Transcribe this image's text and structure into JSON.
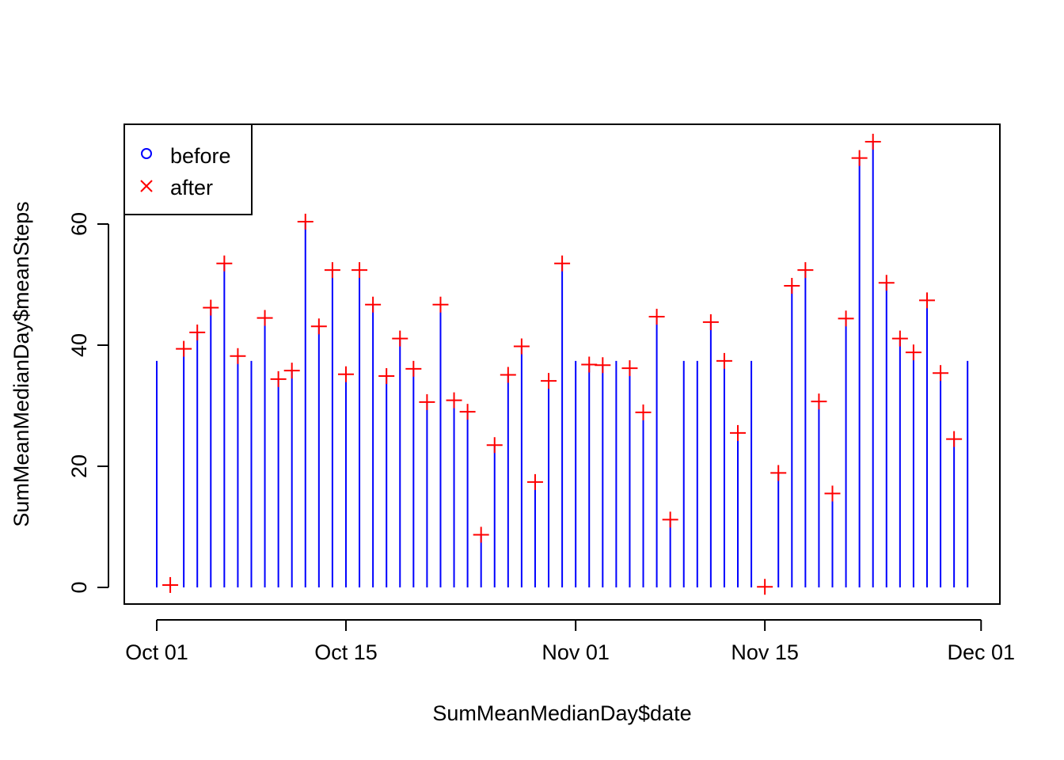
{
  "chart_data": {
    "type": "line",
    "title": "",
    "xlabel": "SumMeanMedianDay$date",
    "ylabel": "SumMeanMedianDay$meanSteps",
    "x_ticks": [
      "Oct 01",
      "Oct 15",
      "Nov 01",
      "Nov 15",
      "Dec 01"
    ],
    "y_ticks": [
      "0",
      "20",
      "40",
      "60"
    ],
    "x_tick_dates": [
      "2012-10-01",
      "2012-10-15",
      "2012-11-01",
      "2012-11-15",
      "2012-12-01"
    ],
    "xlim": [
      "2012-09-28",
      "2012-12-02"
    ],
    "ylim": [
      0,
      75
    ],
    "legend": {
      "position": "top-left",
      "entries": [
        {
          "label": "before",
          "symbol": "circle",
          "color": "#0000ff"
        },
        {
          "label": "after",
          "symbol": "x",
          "color": "#ff0000"
        }
      ]
    },
    "series": [
      {
        "name": "before",
        "style": "vertical-lines",
        "color": "#0000ff",
        "x": [
          "2012-10-01",
          "2012-10-02",
          "2012-10-03",
          "2012-10-04",
          "2012-10-05",
          "2012-10-06",
          "2012-10-07",
          "2012-10-08",
          "2012-10-09",
          "2012-10-10",
          "2012-10-11",
          "2012-10-12",
          "2012-10-13",
          "2012-10-14",
          "2012-10-15",
          "2012-10-16",
          "2012-10-17",
          "2012-10-18",
          "2012-10-19",
          "2012-10-20",
          "2012-10-21",
          "2012-10-22",
          "2012-10-23",
          "2012-10-24",
          "2012-10-25",
          "2012-10-26",
          "2012-10-27",
          "2012-10-28",
          "2012-10-29",
          "2012-10-30",
          "2012-10-31",
          "2012-11-01",
          "2012-11-02",
          "2012-11-03",
          "2012-11-04",
          "2012-11-05",
          "2012-11-06",
          "2012-11-07",
          "2012-11-08",
          "2012-11-09",
          "2012-11-10",
          "2012-11-11",
          "2012-11-12",
          "2012-11-13",
          "2012-11-14",
          "2012-11-15",
          "2012-11-16",
          "2012-11-17",
          "2012-11-18",
          "2012-11-19",
          "2012-11-20",
          "2012-11-21",
          "2012-11-22",
          "2012-11-23",
          "2012-11-24",
          "2012-11-25",
          "2012-11-26",
          "2012-11-27",
          "2012-11-28",
          "2012-11-29",
          "2012-11-30"
        ],
        "values": [
          37.4,
          0.4,
          39.4,
          42.1,
          46.2,
          53.5,
          38.2,
          37.4,
          44.5,
          34.4,
          35.8,
          60.4,
          43.1,
          52.4,
          35.2,
          52.4,
          46.7,
          34.9,
          41.1,
          36.1,
          30.6,
          46.7,
          30.9,
          29.0,
          8.7,
          23.5,
          35.1,
          39.8,
          17.4,
          34.1,
          53.5,
          37.4,
          36.8,
          36.7,
          37.4,
          36.2,
          28.9,
          44.7,
          11.2,
          37.4,
          37.4,
          43.8,
          37.4,
          25.5,
          37.4,
          0.1,
          18.9,
          49.8,
          52.4,
          30.7,
          15.5,
          44.4,
          70.9,
          73.6,
          50.3,
          41.1,
          38.8,
          47.4,
          35.4,
          24.5,
          37.4
        ]
      },
      {
        "name": "after",
        "style": "points",
        "color": "#ff0000",
        "x": [
          "2012-10-02",
          "2012-10-03",
          "2012-10-04",
          "2012-10-05",
          "2012-10-06",
          "2012-10-07",
          "2012-10-09",
          "2012-10-10",
          "2012-10-11",
          "2012-10-12",
          "2012-10-13",
          "2012-10-14",
          "2012-10-15",
          "2012-10-16",
          "2012-10-17",
          "2012-10-18",
          "2012-10-19",
          "2012-10-20",
          "2012-10-21",
          "2012-10-22",
          "2012-10-23",
          "2012-10-24",
          "2012-10-25",
          "2012-10-26",
          "2012-10-27",
          "2012-10-28",
          "2012-10-29",
          "2012-10-30",
          "2012-10-31",
          "2012-11-02",
          "2012-11-03",
          "2012-11-05",
          "2012-11-06",
          "2012-11-07",
          "2012-11-08",
          "2012-11-11",
          "2012-11-12",
          "2012-11-13",
          "2012-11-15",
          "2012-11-16",
          "2012-11-17",
          "2012-11-18",
          "2012-11-19",
          "2012-11-20",
          "2012-11-21",
          "2012-11-22",
          "2012-11-23",
          "2012-11-24",
          "2012-11-25",
          "2012-11-26",
          "2012-11-27",
          "2012-11-28",
          "2012-11-29"
        ],
        "values": [
          0.4,
          39.4,
          42.1,
          46.2,
          53.5,
          38.2,
          44.5,
          34.4,
          35.8,
          60.4,
          43.1,
          52.4,
          35.2,
          52.4,
          46.7,
          34.9,
          41.1,
          36.1,
          30.6,
          46.7,
          30.9,
          29.0,
          8.7,
          23.5,
          35.1,
          39.8,
          17.4,
          34.1,
          53.5,
          36.8,
          36.7,
          36.2,
          28.9,
          44.7,
          11.2,
          43.8,
          37.4,
          25.5,
          0.1,
          18.9,
          49.8,
          52.4,
          30.7,
          15.5,
          44.4,
          70.9,
          73.6,
          50.3,
          41.1,
          38.8,
          47.4,
          35.4,
          24.5
        ]
      }
    ]
  }
}
